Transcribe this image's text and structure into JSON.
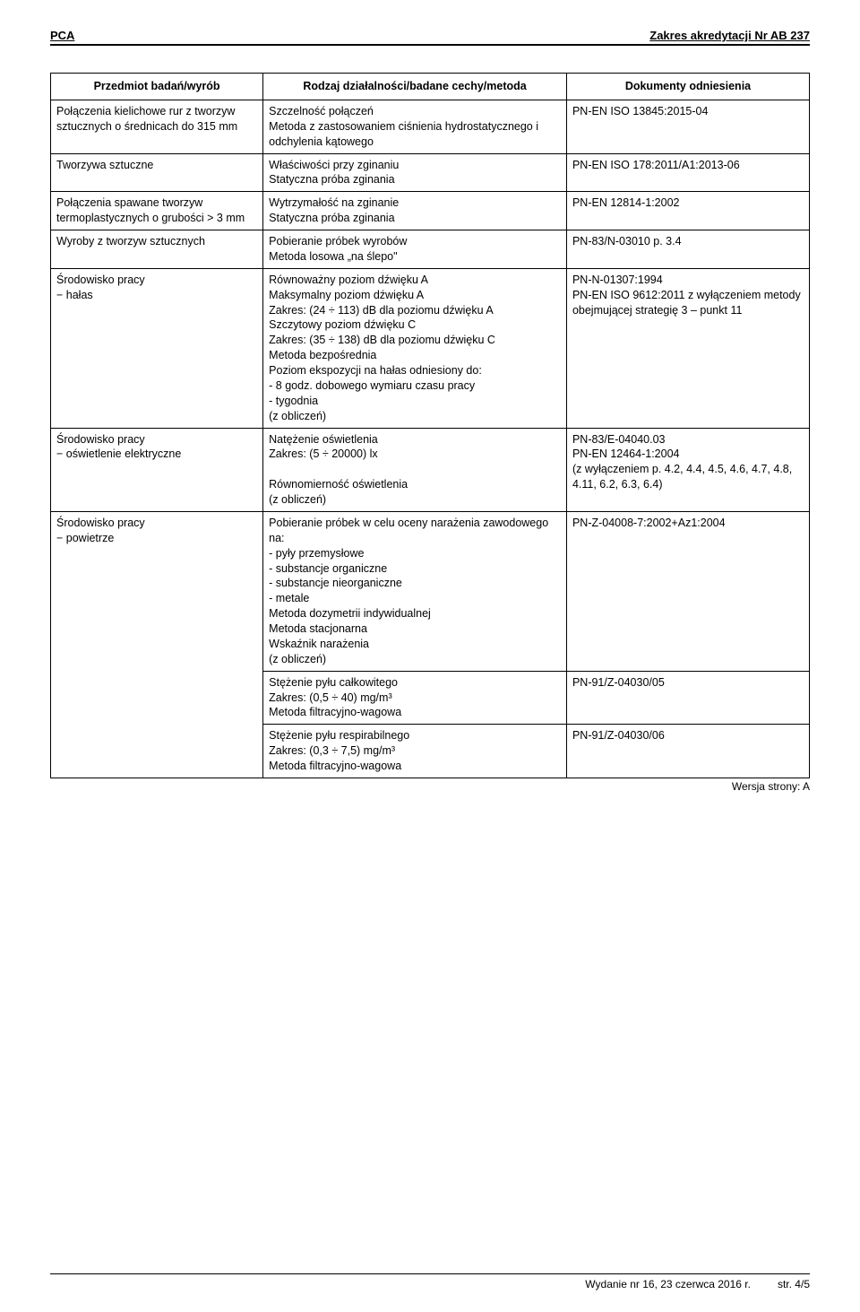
{
  "header": {
    "left": "PCA",
    "right": "Zakres akredytacji Nr AB 237"
  },
  "table": {
    "headers": {
      "c1": "Przedmiot badań/wyrób",
      "c2": "Rodzaj działalności/badane cechy/metoda",
      "c3": "Dokumenty odniesienia"
    },
    "rows": [
      {
        "c1": "Połączenia kielichowe rur z tworzyw sztucznych o średnicach do 315 mm",
        "c2": "Szczelność połączeń\nMetoda z zastosowaniem ciśnienia hydrostatycznego i odchylenia kątowego",
        "c3": "PN-EN ISO 13845:2015-04"
      },
      {
        "c1": "Tworzywa sztuczne",
        "c2": "Właściwości przy zginaniu\nStatyczna próba zginania",
        "c3": "PN-EN ISO 178:2011/A1:2013-06"
      },
      {
        "c1": "Połączenia spawane tworzyw termoplastycznych o grubości > 3 mm",
        "c2": "Wytrzymałość na zginanie\nStatyczna próba zginania",
        "c3": "PN-EN 12814-1:2002"
      },
      {
        "c1": "Wyroby z tworzyw sztucznych",
        "c2": "Pobieranie próbek wyrobów\nMetoda losowa „na ślepo\"",
        "c3": "PN-83/N-03010 p. 3.4"
      },
      {
        "c1": "Środowisko pracy\n− hałas",
        "c2": "Równoważny poziom dźwięku A\nMaksymalny poziom dźwięku A\nZakres: (24 ÷ 113) dB dla poziomu dźwięku A\nSzczytowy poziom dźwięku C\nZakres: (35 ÷ 138) dB dla poziomu dźwięku C\nMetoda bezpośrednia\nPoziom ekspozycji na hałas odniesiony do:\n- 8 godz. dobowego wymiaru czasu pracy\n- tygodnia\n(z obliczeń)",
        "c3": "PN-N-01307:1994\nPN-EN ISO 9612:2011 z wyłączeniem metody obejmującej strategię 3 – punkt 11"
      },
      {
        "c1": "Środowisko pracy\n− oświetlenie elektryczne",
        "c2": "Natężenie oświetlenia\nZakres: (5 ÷ 20000) lx\n\nRównomierność oświetlenia\n(z obliczeń)",
        "c3": "PN-83/E-04040.03\nPN-EN 12464-1:2004\n(z wyłączeniem p. 4.2, 4.4, 4.5, 4.6, 4.7, 4.8, 4.11, 6.2, 6.3, 6.4)"
      },
      {
        "c1": "Środowisko pracy\n− powietrze",
        "c1_rowspan": 3,
        "c2": "Pobieranie próbek w celu oceny narażenia zawodowego na:\n- pyły przemysłowe\n- substancje organiczne\n- substancje nieorganiczne\n- metale\nMetoda dozymetrii indywidualnej\nMetoda stacjonarna\nWskaźnik narażenia\n(z obliczeń)",
        "c3": "PN-Z-04008-7:2002+Az1:2004"
      },
      {
        "c1_skip": true,
        "c2": "Stężenie pyłu całkowitego\nZakres: (0,5 ÷ 40) mg/m³\nMetoda filtracyjno-wagowa",
        "c3": "PN-91/Z-04030/05"
      },
      {
        "c1_skip": true,
        "c2": "Stężenie pyłu respirabilnego\nZakres: (0,3 ÷ 7,5) mg/m³\nMetoda filtracyjno-wagowa",
        "c3": "PN-91/Z-04030/06"
      }
    ]
  },
  "version": "Wersja strony: A",
  "footer": {
    "edition": "Wydanie nr 16, 23 czerwca 2016 r.",
    "page": "str. 4/5"
  }
}
